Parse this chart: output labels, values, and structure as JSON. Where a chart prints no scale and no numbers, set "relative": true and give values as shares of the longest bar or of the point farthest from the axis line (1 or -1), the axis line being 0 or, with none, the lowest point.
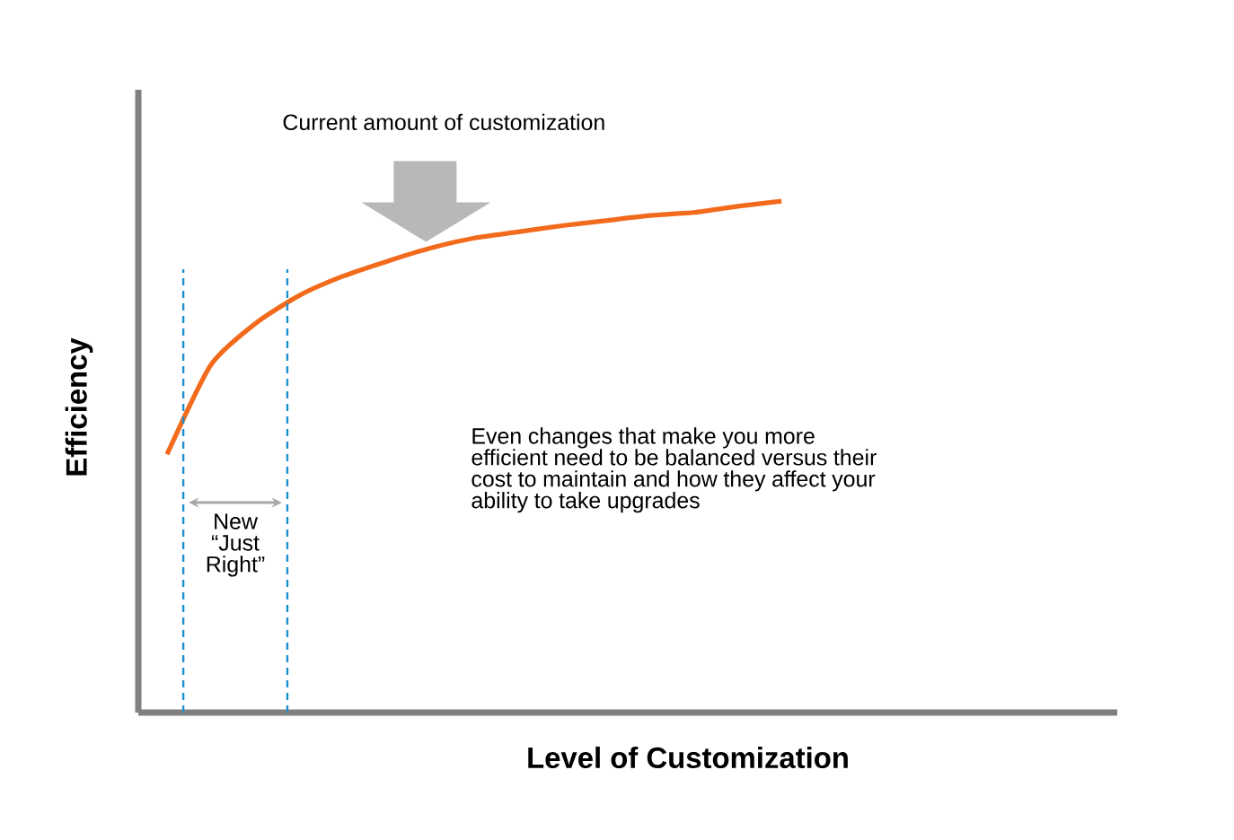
{
  "chart_data": {
    "type": "line",
    "relative": true,
    "xlabel": "Level of Customization",
    "ylabel": "Efficiency",
    "color": "#f26b1d",
    "categories": [
      null,
      null,
      null,
      null,
      null,
      null,
      null,
      null,
      null,
      null,
      null,
      null,
      null,
      null,
      null
    ],
    "values": [
      0.505,
      0.68,
      0.76,
      0.815,
      0.853,
      0.882,
      0.908,
      0.928,
      0.94,
      0.952,
      0.962,
      0.972,
      0.978,
      0.99,
      1
    ],
    "annotations": [
      "Current amount of customization",
      "New “Just Right”",
      "Even changes that make you more efficient need to be balanced versus their cost to maintain and how they affect your ability to take upgrades"
    ]
  }
}
